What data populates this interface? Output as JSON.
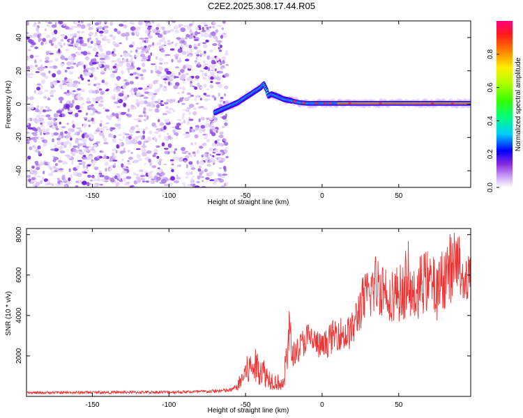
{
  "title": "C2E2.2025.308.17.44.R05",
  "chart_data": [
    {
      "type": "heatmap",
      "name": "spectrogram",
      "xlabel": "Height of straight line (km)",
      "ylabel": "Frequency (Hz)",
      "xlim": [
        -193,
        97
      ],
      "ylim": [
        -50,
        50
      ],
      "xticks": [
        -150,
        -100,
        -50,
        0,
        50
      ],
      "yticks": [
        -40,
        -20,
        0,
        20,
        40
      ],
      "noise_region": {
        "x": [
          -193,
          -62
        ],
        "y": [
          -50,
          50
        ]
      },
      "signal_track": {
        "x": [
          -70,
          -65,
          -60,
          -55,
          -50,
          -45,
          -40,
          -38,
          -36,
          -35,
          -33,
          -30,
          -25,
          -20,
          -15,
          -10,
          -5,
          0,
          5,
          10,
          20,
          40,
          60,
          80,
          97
        ],
        "y": [
          -5,
          -3,
          -1,
          1,
          4,
          7,
          10,
          12,
          8,
          5,
          6,
          5,
          3,
          2,
          1,
          0.5,
          0.5,
          0.5,
          0.5,
          0.5,
          0.5,
          0.5,
          0.5,
          0.5,
          0.5
        ]
      },
      "colorbar": {
        "label": "Normalized spectral amplitude",
        "range": [
          0.0,
          1.0
        ],
        "ticks": [
          0.0,
          0.2,
          0.4,
          0.6,
          0.8
        ]
      }
    },
    {
      "type": "line",
      "name": "snr",
      "xlabel": "Height of straight line (km)",
      "ylabel": "SNR (10 * v/v)",
      "xlim": [
        -193,
        97
      ],
      "ylim": [
        0,
        8300
      ],
      "xticks": [
        -150,
        -100,
        -50,
        0,
        50
      ],
      "yticks": [
        2000,
        4000,
        6000,
        8000
      ],
      "color": "#ee3333",
      "series": [
        {
          "name": "SNR",
          "x": [
            -193,
            -170,
            -150,
            -130,
            -110,
            -90,
            -75,
            -60,
            -55,
            -50,
            -45,
            -40,
            -35,
            -30,
            -28,
            -25,
            -22,
            -20,
            -15,
            -10,
            -5,
            0,
            5,
            10,
            15,
            20,
            25,
            30,
            35,
            40,
            45,
            50,
            55,
            60,
            65,
            70,
            75,
            80,
            85,
            90,
            97
          ],
          "y": [
            180,
            190,
            200,
            200,
            210,
            220,
            240,
            300,
            500,
            1200,
            1500,
            1400,
            900,
            700,
            700,
            500,
            3500,
            2000,
            2400,
            2900,
            2700,
            2400,
            2800,
            3200,
            3000,
            3300,
            4500,
            5000,
            5600,
            5400,
            5100,
            5100,
            5300,
            4900,
            5600,
            5700,
            5200,
            6000,
            6500,
            6400,
            5600
          ]
        }
      ]
    }
  ]
}
